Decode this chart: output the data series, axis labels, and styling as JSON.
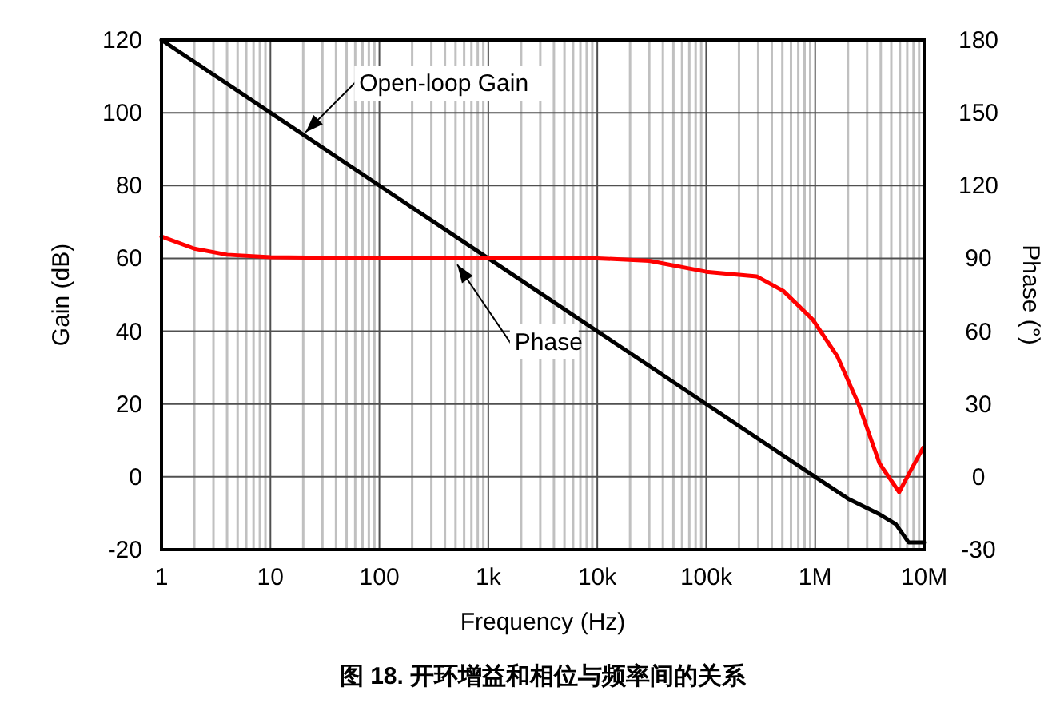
{
  "chart_data": {
    "type": "line",
    "xlabel": "Frequency (Hz)",
    "ylabel": "Gain (dB)",
    "y2label": "Phase (°)",
    "log": "x",
    "grid": true,
    "line_style": "solid",
    "xlim": [
      1,
      10000000
    ],
    "xticks": [
      1,
      10,
      100,
      {
        "value": 1000,
        "label": "1k"
      },
      {
        "value": 10000,
        "label": "10k"
      },
      {
        "value": 100000,
        "label": "100k"
      },
      {
        "value": 1000000,
        "label": "1M"
      },
      {
        "value": 10000000,
        "label": "10M"
      }
    ],
    "ylim": [
      -20,
      120
    ],
    "yticks": [
      -20,
      0,
      20,
      40,
      60,
      80,
      100,
      120
    ],
    "y2lim": [
      -30,
      180
    ],
    "y2ticks": [
      -30,
      0,
      30,
      60,
      90,
      120,
      150,
      180
    ],
    "series": [
      {
        "color": "#000000",
        "x": [
          1,
          10,
          100,
          1000,
          10000,
          100000,
          1000000,
          2000000,
          3900000,
          5500000,
          7200000,
          8500000,
          10000000
        ],
        "values": [
          120,
          100,
          80,
          60,
          40,
          20,
          0,
          -6,
          -10.3,
          -13,
          -18,
          -18,
          -18
        ]
      },
      {
        "color": "#ff0000",
        "axis": "y2",
        "x": [
          1,
          2,
          4,
          10,
          100,
          1000,
          10000,
          30000,
          100000,
          290000,
          510000,
          950000,
          1600000,
          2500000,
          3900000,
          5900000,
          7200000,
          9800000
        ],
        "values": [
          99,
          94,
          91.5,
          90.5,
          90,
          90,
          90,
          89,
          84.5,
          82.6,
          76.6,
          64.8,
          49.6,
          30,
          5.5,
          -6.3,
          1,
          12
        ]
      }
    ],
    "annotations": [
      {
        "text": "Open-loop Gain",
        "x": 20,
        "y": 94
      },
      {
        "text": "Phase",
        "x": 500,
        "y": 59
      },
      "图 18. 开环增益和相位与频率间的关系"
    ]
  }
}
